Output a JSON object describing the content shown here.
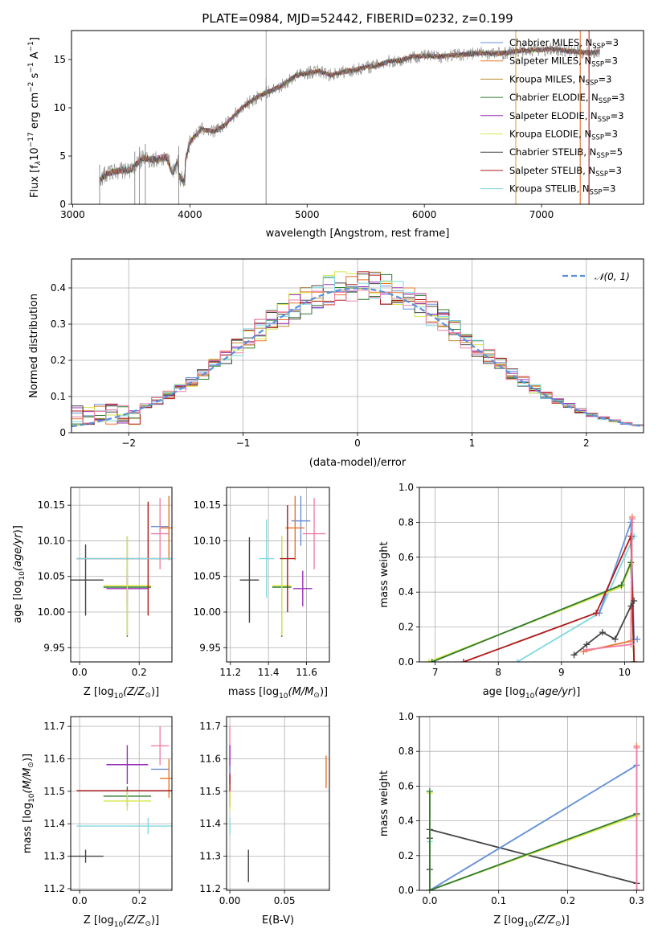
{
  "figure": {
    "title": "PLATE=0984, MJD=52442, FIBERID=0232, z=0.199"
  },
  "colors": {
    "Chabrier MILES": "#6a8fd8",
    "Salpeter MILES": "#e8742a",
    "Kroupa MILES": "#b88a2e",
    "Chabrier ELODIE": "#2e7a2e",
    "Salpeter ELODIE": "#9a2fb8",
    "Kroupa ELODIE": "#d8e84a",
    "Chabrier STELIB": "#444444",
    "Salpeter STELIB": "#b01818",
    "Kroupa STELIB": "#7fd8e0",
    "data": "#888888",
    "normal": "#5b8fd8",
    "pink": "#f080a8"
  },
  "chart_data": [
    {
      "id": "spectrum",
      "type": "line",
      "xlabel": "wavelength [Angstrom, rest frame]",
      "ylabel_parts": [
        "Flux [f",
        "λ",
        "10",
        "−17",
        " erg cm",
        "−2",
        " s",
        "−1",
        " A",
        "−1",
        "]"
      ],
      "xlim": [
        2990,
        7870
      ],
      "ylim": [
        0,
        18
      ],
      "xticks": [
        3000,
        4000,
        5000,
        6000,
        7000
      ],
      "yticks": [
        0,
        5,
        10,
        15
      ],
      "grid": false,
      "legend_position": "top-right",
      "legend": [
        {
          "name": "Chabrier MILES",
          "nssp": "3"
        },
        {
          "name": "Salpeter MILES",
          "nssp": "3"
        },
        {
          "name": "Kroupa MILES",
          "nssp": "3"
        },
        {
          "name": "Chabrier ELODIE",
          "nssp": "3"
        },
        {
          "name": "Salpeter ELODIE",
          "nssp": "3"
        },
        {
          "name": "Kroupa ELODIE",
          "nssp": "3"
        },
        {
          "name": "Chabrier STELIB",
          "nssp": "5"
        },
        {
          "name": "Salpeter STELIB",
          "nssp": "3"
        },
        {
          "name": "Kroupa STELIB",
          "nssp": "3"
        }
      ],
      "continuum": [
        [
          3200,
          0
        ],
        [
          3230,
          2.6
        ],
        [
          3300,
          3.2
        ],
        [
          3400,
          3.5
        ],
        [
          3500,
          3.6
        ],
        [
          3600,
          4.8
        ],
        [
          3700,
          4.6
        ],
        [
          3800,
          4.9
        ],
        [
          3850,
          3.2
        ],
        [
          3900,
          4.6
        ],
        [
          3950,
          3.8
        ],
        [
          4000,
          6.5
        ],
        [
          4100,
          7.8
        ],
        [
          4200,
          7.5
        ],
        [
          4300,
          8.2
        ],
        [
          4400,
          9.5
        ],
        [
          4500,
          10.5
        ],
        [
          4600,
          11.3
        ],
        [
          4700,
          11.8
        ],
        [
          4800,
          12.4
        ],
        [
          4900,
          13.3
        ],
        [
          5000,
          13.6
        ],
        [
          5100,
          13.8
        ],
        [
          5200,
          13.4
        ],
        [
          5300,
          13.7
        ],
        [
          5400,
          13.9
        ],
        [
          5500,
          14.2
        ],
        [
          5600,
          14.4
        ],
        [
          5700,
          14.8
        ],
        [
          5800,
          14.9
        ],
        [
          5900,
          15.3
        ],
        [
          6000,
          15.4
        ],
        [
          6100,
          15.3
        ],
        [
          6200,
          15.4
        ],
        [
          6300,
          15.5
        ],
        [
          6400,
          15.6
        ],
        [
          6500,
          15.7
        ],
        [
          6600,
          15.6
        ],
        [
          6700,
          15.7
        ],
        [
          6800,
          15.9
        ],
        [
          6900,
          16.0
        ],
        [
          7000,
          16.0
        ],
        [
          7100,
          16.1
        ],
        [
          7200,
          15.9
        ],
        [
          7300,
          15.8
        ],
        [
          7400,
          15.7
        ],
        [
          7500,
          15.8
        ]
      ],
      "spikes": [
        [
          3230,
          0
        ],
        [
          3530,
          0
        ],
        [
          3570,
          0
        ],
        [
          3620,
          0
        ],
        [
          3905,
          0
        ],
        [
          4650,
          0
        ],
        [
          6780,
          0
        ],
        [
          7330,
          0
        ],
        [
          7405,
          0
        ]
      ]
    },
    {
      "id": "residuals",
      "type": "histogram",
      "xlabel": "(data-model)/error",
      "ylabel": "Normed distribution",
      "xlim": [
        -2.5,
        2.5
      ],
      "ylim": [
        0,
        0.48
      ],
      "xticks": [
        -2,
        -1,
        0,
        1,
        2
      ],
      "yticks": [
        0.0,
        0.1,
        0.2,
        0.3,
        0.4
      ],
      "grid": true,
      "legend_position": "top-right",
      "legend_label": "𝒩(0, 1)",
      "bin_width": 0.1
    },
    {
      "id": "age-vs-Z",
      "type": "scatter",
      "xlabel": "Z [log10(Z/Z⊙)]",
      "ylabel": "age  [log10(age/yr)]",
      "xlim": [
        -0.03,
        0.31
      ],
      "ylim": [
        9.93,
        10.175
      ],
      "xticks": [
        0.0,
        0.2
      ],
      "xtick_labels": [
        "0.0",
        "0.2"
      ],
      "yticks": [
        9.95,
        10.0,
        10.05,
        10.1,
        10.15
      ],
      "grid": true,
      "points": [
        {
          "series": "Chabrier MILES",
          "x": 0.27,
          "y": 10.12,
          "dx": 0.03,
          "dy": 0.01
        },
        {
          "series": "Salpeter MILES",
          "x": 0.3,
          "y": 10.118,
          "dx": 0.03,
          "dy": 0.045
        },
        {
          "series": "pink",
          "x": 0.27,
          "y": 10.11,
          "dx": 0.03,
          "dy": 0.05
        },
        {
          "series": "Chabrier ELODIE",
          "x": 0.16,
          "y": 10.035,
          "dx": 0.08,
          "dy": 0.07
        },
        {
          "series": "Salpeter ELODIE",
          "x": 0.16,
          "y": 10.033,
          "dx": 0.07,
          "dy": 0.02
        },
        {
          "series": "Kroupa ELODIE",
          "x": 0.16,
          "y": 10.037,
          "dx": 0.08,
          "dy": 0.07
        },
        {
          "series": "Chabrier STELIB",
          "x": 0.02,
          "y": 10.045,
          "dx": 0.06,
          "dy": 0.05
        },
        {
          "series": "Salpeter STELIB",
          "x": 0.23,
          "y": 10.075,
          "dx": 0.24,
          "dy": 0.08
        },
        {
          "series": "Kroupa STELIB",
          "x": 0.23,
          "y": 10.075,
          "dx": 0.24,
          "dy": 0.0
        }
      ]
    },
    {
      "id": "age-vs-mass",
      "type": "scatter",
      "xlabel": "mass [log10(M/M⊙)]",
      "ylabel": "",
      "xlim": [
        11.18,
        11.72
      ],
      "ylim": [
        9.93,
        10.175
      ],
      "xticks": [
        11.2,
        11.4,
        11.6
      ],
      "xtick_labels": [
        "11.2",
        "11.4",
        "11.6"
      ],
      "yticks": [
        9.95,
        10.0,
        10.05,
        10.1,
        10.15
      ],
      "grid": true,
      "points": [
        {
          "series": "Chabrier MILES",
          "x": 11.57,
          "y": 10.128,
          "dx": 0.05,
          "dy": 0.035
        },
        {
          "series": "Salpeter MILES",
          "x": 11.54,
          "y": 10.118,
          "dx": 0.05,
          "dy": 0.045
        },
        {
          "series": "pink",
          "x": 11.64,
          "y": 10.11,
          "dx": 0.06,
          "dy": 0.05
        },
        {
          "series": "Chabrier ELODIE",
          "x": 11.47,
          "y": 10.035,
          "dx": 0.05,
          "dy": 0.07
        },
        {
          "series": "Salpeter ELODIE",
          "x": 11.58,
          "y": 10.033,
          "dx": 0.05,
          "dy": 0.025
        },
        {
          "series": "Kroupa ELODIE",
          "x": 11.47,
          "y": 10.037,
          "dx": 0.05,
          "dy": 0.07
        },
        {
          "series": "Chabrier STELIB",
          "x": 11.3,
          "y": 10.045,
          "dx": 0.05,
          "dy": 0.06
        },
        {
          "series": "Salpeter STELIB",
          "x": 11.5,
          "y": 10.075,
          "dx": 0.04,
          "dy": 0.075
        },
        {
          "series": "Kroupa STELIB",
          "x": 11.39,
          "y": 10.075,
          "dx": 0.04,
          "dy": 0.055
        }
      ]
    },
    {
      "id": "weight-vs-age",
      "type": "line",
      "xlabel": "age  [log10(age/yr)]",
      "ylabel": "mass weight",
      "xlim": [
        6.75,
        10.3
      ],
      "ylim": [
        0,
        1.0
      ],
      "xticks": [
        7,
        8,
        9,
        10
      ],
      "yticks": [
        0.0,
        0.2,
        0.4,
        0.6,
        0.8,
        1.0
      ],
      "grid": true,
      "series": [
        {
          "name": "Kroupa STELIB",
          "x": [
            8.3,
            9.6,
            10.15,
            10.15
          ],
          "y": [
            0.0,
            0.28,
            0.72,
            0.72
          ]
        },
        {
          "name": "Chabrier MILES",
          "x": [
            9.6,
            10.1,
            10.15,
            10.2
          ],
          "y": [
            0.28,
            0.8,
            0.13,
            0.13
          ]
        },
        {
          "name": "Kroupa ELODIE",
          "x": [
            6.9,
            9.95,
            10.1,
            10.15
          ],
          "y": [
            0.0,
            0.43,
            0.56,
            0.0
          ]
        },
        {
          "name": "Chabrier ELODIE",
          "x": [
            6.95,
            9.95,
            10.1,
            10.15
          ],
          "y": [
            0.0,
            0.44,
            0.57,
            0.0
          ]
        },
        {
          "name": "Salpeter STELIB",
          "x": [
            7.45,
            9.55,
            10.1,
            10.15
          ],
          "y": [
            0.0,
            0.28,
            0.72,
            0.0
          ]
        },
        {
          "name": "Salpeter MILES",
          "x": [
            9.35,
            10.1,
            10.12
          ],
          "y": [
            0.06,
            0.12,
            0.83
          ]
        },
        {
          "name": "pink",
          "x": [
            9.4,
            10.1,
            10.12
          ],
          "y": [
            0.07,
            0.1,
            0.82
          ]
        },
        {
          "name": "Chabrier STELIB",
          "x": [
            9.2,
            9.4,
            9.65,
            9.85,
            10.1,
            10.15
          ],
          "y": [
            0.04,
            0.1,
            0.17,
            0.13,
            0.32,
            0.35
          ]
        }
      ]
    },
    {
      "id": "mass-vs-Z",
      "type": "scatter",
      "xlabel": "Z [log10(Z/Z⊙)]",
      "ylabel": "mass [log10(M/M⊙)]",
      "xlim": [
        -0.03,
        0.31
      ],
      "ylim": [
        11.195,
        11.73
      ],
      "xticks": [
        0.0,
        0.2
      ],
      "xtick_labels": [
        "0.0",
        "0.2"
      ],
      "yticks": [
        11.2,
        11.3,
        11.4,
        11.5,
        11.6,
        11.7
      ],
      "grid": true,
      "points": [
        {
          "series": "Chabrier MILES",
          "x": 0.27,
          "y": 11.568,
          "dx": 0.03,
          "dy": 0.0
        },
        {
          "series": "Salpeter MILES",
          "x": 0.3,
          "y": 11.54,
          "dx": 0.03,
          "dy": 0.06
        },
        {
          "series": "pink",
          "x": 0.27,
          "y": 11.64,
          "dx": 0.03,
          "dy": 0.06
        },
        {
          "series": "Chabrier ELODIE",
          "x": 0.16,
          "y": 11.485,
          "dx": 0.08,
          "dy": 0.03
        },
        {
          "series": "Salpeter ELODIE",
          "x": 0.16,
          "y": 11.582,
          "dx": 0.07,
          "dy": 0.06
        },
        {
          "series": "Kroupa ELODIE",
          "x": 0.16,
          "y": 11.47,
          "dx": 0.08,
          "dy": 0.03
        },
        {
          "series": "Chabrier STELIB",
          "x": 0.02,
          "y": 11.3,
          "dx": 0.06,
          "dy": 0.02
        },
        {
          "series": "Salpeter STELIB",
          "x": 0.23,
          "y": 11.502,
          "dx": 0.24,
          "dy": 0.0
        },
        {
          "series": "Kroupa STELIB",
          "x": 0.23,
          "y": 11.393,
          "dx": 0.24,
          "dy": 0.025
        }
      ]
    },
    {
      "id": "mass-vs-EBV",
      "type": "scatter",
      "xlabel": "E(B-V)",
      "ylabel": "",
      "xlim": [
        -0.003,
        0.091
      ],
      "ylim": [
        11.195,
        11.73
      ],
      "xticks": [
        0.0,
        0.05
      ],
      "xtick_labels": [
        "0.00",
        "0.05"
      ],
      "yticks": [
        11.2,
        11.3,
        11.4,
        11.5,
        11.6,
        11.7
      ],
      "grid": true,
      "points": [
        {
          "series": "pink",
          "x": 0.0,
          "y": 11.64,
          "dx": 0.0,
          "dy": 0.06
        },
        {
          "series": "Salpeter ELODIE",
          "x": 0.0,
          "y": 11.582,
          "dx": 0.0,
          "dy": 0.06
        },
        {
          "series": "Chabrier MILES",
          "x": 0.0,
          "y": 11.568,
          "dx": 0.0,
          "dy": 0.01
        },
        {
          "series": "Salpeter STELIB",
          "x": 0.0,
          "y": 11.502,
          "dx": 0.0,
          "dy": 0.05
        },
        {
          "series": "Kroupa STELIB",
          "x": 0.0,
          "y": 11.393,
          "dx": 0.0,
          "dy": 0.025
        },
        {
          "series": "Kroupa ELODIE",
          "x": 0.0,
          "y": 11.47,
          "dx": 0.0,
          "dy": 0.03
        },
        {
          "series": "Salpeter MILES",
          "x": 0.088,
          "y": 11.56,
          "dx": 0.0,
          "dy": 0.05
        },
        {
          "series": "Chabrier STELIB",
          "x": 0.017,
          "y": 11.27,
          "dx": 0.0,
          "dy": 0.05
        }
      ]
    },
    {
      "id": "weight-vs-Z",
      "type": "line",
      "xlabel": "Z [log10(Z/Z⊙)]",
      "ylabel": "mass weight",
      "xlim": [
        -0.015,
        0.31
      ],
      "ylim": [
        0,
        1.0
      ],
      "xticks": [
        0.0,
        0.1,
        0.2,
        0.3
      ],
      "yticks": [
        0.0,
        0.2,
        0.4,
        0.6,
        0.8,
        1.0
      ],
      "grid": true,
      "series": [
        {
          "name": "Chabrier STELIB",
          "x": [
            0.0,
            0.0,
            0.0,
            0.3,
            0.3
          ],
          "y": [
            0.12,
            0.3,
            0.35,
            0.04,
            0.04
          ]
        },
        {
          "name": "Kroupa STELIB",
          "x": [
            0.0,
            0.0,
            0.3,
            0.3
          ],
          "y": [
            0.28,
            0.0,
            0.72,
            0.72
          ]
        },
        {
          "name": "Chabrier MILES",
          "x": [
            0.0,
            0.3,
            0.3
          ],
          "y": [
            0.0,
            0.72,
            0.72
          ]
        },
        {
          "name": "Kroupa ELODIE",
          "x": [
            0.0,
            0.0,
            0.3,
            0.3
          ],
          "y": [
            0.56,
            0.0,
            0.43,
            0.43
          ]
        },
        {
          "name": "Chabrier ELODIE",
          "x": [
            0.0,
            0.0,
            0.3,
            0.3
          ],
          "y": [
            0.57,
            0.0,
            0.44,
            0.44
          ]
        },
        {
          "name": "Salpeter MILES",
          "x": [
            0.3,
            0.3
          ],
          "y": [
            0.0,
            0.83
          ]
        },
        {
          "name": "pink",
          "x": [
            0.3,
            0.3
          ],
          "y": [
            0.0,
            0.82
          ]
        }
      ]
    }
  ]
}
